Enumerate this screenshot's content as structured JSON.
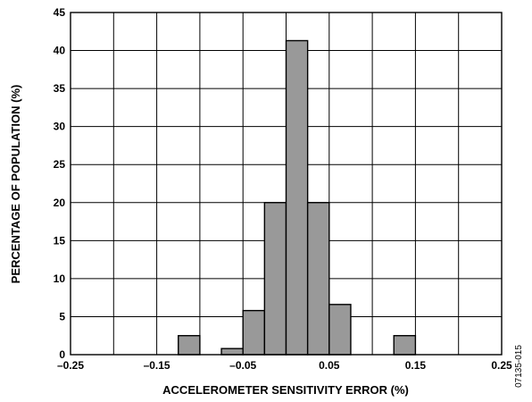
{
  "chart_data": {
    "type": "bar",
    "title": "",
    "xlabel": "ACCELEROMETER SENSITIVITY ERROR (%)",
    "ylabel": "PERCENTAGE OF POPULATION (%)",
    "xlim": [
      -0.25,
      0.25
    ],
    "ylim": [
      0,
      45
    ],
    "x_ticks": [
      "–0.25",
      "–0.15",
      "–0.05",
      "0.05",
      "0.15",
      "0.25"
    ],
    "x_tick_values": [
      -0.25,
      -0.15,
      -0.05,
      0.05,
      0.15,
      0.25
    ],
    "y_ticks": [
      "0",
      "5",
      "10",
      "15",
      "20",
      "25",
      "30",
      "35",
      "40",
      "45"
    ],
    "y_tick_values": [
      0,
      5,
      10,
      15,
      20,
      25,
      30,
      35,
      40,
      45
    ],
    "bin_width": 0.025,
    "bars": [
      {
        "x": -0.1125,
        "value": 2.5
      },
      {
        "x": -0.0625,
        "value": 0.8
      },
      {
        "x": -0.0375,
        "value": 5.8
      },
      {
        "x": -0.0125,
        "value": 20.0
      },
      {
        "x": 0.0125,
        "value": 41.3
      },
      {
        "x": 0.0375,
        "value": 20.0
      },
      {
        "x": 0.0625,
        "value": 6.6
      },
      {
        "x": 0.1375,
        "value": 2.5
      }
    ],
    "grid": true,
    "bar_color": "#999999",
    "figure_id": "07135-015"
  }
}
